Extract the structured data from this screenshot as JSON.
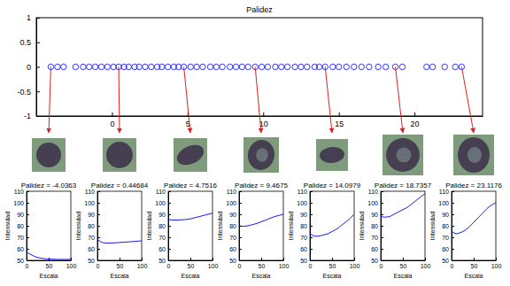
{
  "chart_data": [
    {
      "type": "scatter",
      "title": "Palidez",
      "color": "#0000ff",
      "marker": "circle",
      "x": [
        -4.0363,
        -3.6,
        -3.2,
        -2.4,
        -1.9,
        -1.5,
        -1.1,
        -0.7,
        -0.3,
        0.1,
        0.44684,
        0.8,
        1.1,
        1.5,
        1.8,
        2.2,
        2.6,
        3,
        3.3,
        3.7,
        4.1,
        4.4,
        4.7516,
        5.2,
        5.6,
        6,
        6.5,
        6.9,
        7.3,
        7.8,
        8.2,
        8.6,
        9,
        9.4675,
        9.9,
        10.3,
        10.8,
        11.2,
        11.6,
        12.1,
        12.5,
        12.9,
        13.4,
        13.7,
        14.0979,
        14.6,
        15,
        15.5,
        16,
        16.5,
        17,
        17.6,
        18.1,
        18.7357,
        19.2,
        20.8,
        21.2,
        22,
        22.7,
        23.1176
      ],
      "values": [
        0,
        0,
        0,
        0,
        0,
        0,
        0,
        0,
        0,
        0,
        0,
        0,
        0,
        0,
        0,
        0,
        0,
        0,
        0,
        0,
        0,
        0,
        0,
        0,
        0,
        0,
        0,
        0,
        0,
        0,
        0,
        0,
        0,
        0,
        0,
        0,
        0,
        0,
        0,
        0,
        0,
        0,
        0,
        0,
        0,
        0,
        0,
        0,
        0,
        0,
        0,
        0,
        0,
        0,
        0,
        0,
        0,
        0,
        0,
        0
      ],
      "highlight_x": [
        -4.0363,
        0.44684,
        4.7516,
        9.4675,
        14.0979,
        18.7357,
        23.1176
      ],
      "xlim": [
        -5,
        24.5
      ],
      "xticks": [
        0,
        5,
        10,
        15,
        20
      ],
      "ylim": [
        -1,
        1
      ],
      "yticks": [
        -1,
        -0.5,
        0,
        0.5,
        1
      ]
    },
    {
      "type": "line",
      "title": "Palidez = -4.0363",
      "x_label": "Escala",
      "y_label": "Intensidad",
      "color": "#0000ff",
      "x": [
        0,
        10,
        20,
        30,
        40,
        50,
        60,
        70,
        80,
        90,
        100
      ],
      "values": [
        57,
        55,
        53,
        52,
        51.5,
        51,
        51,
        50.8,
        50.8,
        50.8,
        50.8
      ],
      "xlim": [
        0,
        100
      ],
      "xticks": [
        0,
        50,
        100
      ],
      "ylim": [
        50,
        110
      ],
      "yticks": [
        50,
        60,
        70,
        80,
        90,
        100,
        110
      ]
    },
    {
      "type": "line",
      "title": "Palidez = 0.44684",
      "x_label": "Escala",
      "y_label": "Intensidad",
      "color": "#0000ff",
      "x": [
        0,
        10,
        20,
        30,
        40,
        50,
        60,
        70,
        80,
        90,
        100
      ],
      "values": [
        68,
        65.5,
        65,
        65,
        65.2,
        65.5,
        65.8,
        66,
        66.3,
        66.6,
        67
      ],
      "xlim": [
        0,
        100
      ],
      "xticks": [
        0,
        50,
        100
      ],
      "ylim": [
        50,
        110
      ],
      "yticks": [
        50,
        60,
        70,
        80,
        90,
        100,
        110
      ]
    },
    {
      "type": "line",
      "title": "Palidez = 4.7516",
      "x_label": "Escala",
      "y_label": "Intensidad",
      "color": "#0000ff",
      "x": [
        0,
        10,
        20,
        30,
        40,
        50,
        60,
        70,
        80,
        90,
        100
      ],
      "values": [
        85.5,
        85,
        85,
        85.2,
        85.5,
        86,
        87,
        88,
        89,
        90,
        91
      ],
      "xlim": [
        0,
        100
      ],
      "xticks": [
        0,
        50,
        100
      ],
      "ylim": [
        50,
        110
      ],
      "yticks": [
        50,
        60,
        70,
        80,
        90,
        100,
        110
      ]
    },
    {
      "type": "line",
      "title": "Palidez = 9.4675",
      "x_label": "Escala",
      "y_label": "Intensidad",
      "color": "#0000ff",
      "x": [
        0,
        10,
        20,
        30,
        40,
        50,
        60,
        70,
        80,
        90,
        100
      ],
      "values": [
        80,
        79.5,
        80,
        81,
        82,
        83.5,
        85,
        86.5,
        88,
        89,
        90
      ],
      "xlim": [
        0,
        100
      ],
      "xticks": [
        0,
        50,
        100
      ],
      "ylim": [
        50,
        110
      ],
      "yticks": [
        50,
        60,
        70,
        80,
        90,
        100,
        110
      ]
    },
    {
      "type": "line",
      "title": "Palidez = 14.0979",
      "x_label": "Escala",
      "y_label": "Intensidad",
      "color": "#0000ff",
      "x": [
        0,
        10,
        20,
        30,
        40,
        50,
        60,
        70,
        80,
        90,
        100
      ],
      "values": [
        73,
        71,
        71,
        72,
        73,
        75,
        77,
        80,
        83,
        86,
        90
      ],
      "xlim": [
        0,
        100
      ],
      "xticks": [
        0,
        50,
        100
      ],
      "ylim": [
        50,
        110
      ],
      "yticks": [
        50,
        60,
        70,
        80,
        90,
        100,
        110
      ]
    },
    {
      "type": "line",
      "title": "Palidez = 18.7357",
      "x_label": "Escala",
      "y_label": "Intensidad",
      "color": "#0000ff",
      "x": [
        0,
        10,
        20,
        30,
        40,
        50,
        60,
        70,
        80,
        90,
        100
      ],
      "values": [
        88,
        87.5,
        88,
        90,
        92,
        94,
        96,
        99,
        102,
        105,
        108
      ],
      "xlim": [
        0,
        100
      ],
      "xticks": [
        0,
        50,
        100
      ],
      "ylim": [
        50,
        110
      ],
      "yticks": [
        50,
        60,
        70,
        80,
        90,
        100,
        110
      ]
    },
    {
      "type": "line",
      "title": "Palidez = 23.1176",
      "x_label": "Escala",
      "y_label": "Intensidad",
      "color": "#0000ff",
      "x": [
        0,
        10,
        20,
        30,
        40,
        50,
        60,
        70,
        80,
        90,
        100
      ],
      "values": [
        75,
        73,
        74,
        76,
        79,
        83,
        87,
        91,
        95,
        98,
        100
      ],
      "xlim": [
        0,
        100
      ],
      "xticks": [
        0,
        50,
        100
      ],
      "ylim": [
        50,
        110
      ],
      "yticks": [
        50,
        60,
        70,
        80,
        90,
        100,
        110
      ]
    }
  ]
}
